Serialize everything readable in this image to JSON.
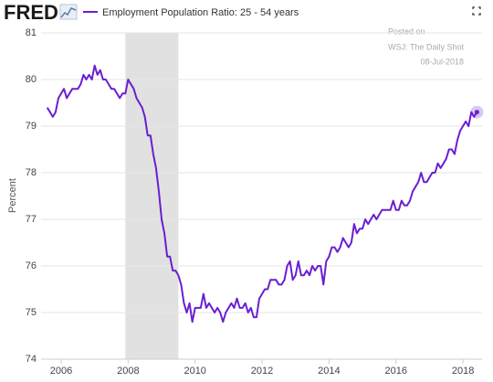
{
  "chart_data": {
    "type": "line",
    "brand": "FRED",
    "ylabel": "Percent",
    "annotations": [
      "Posted on",
      "WSJ: The Daily Shot",
      "08-Jul-2018"
    ],
    "xlim": [
      2005.4,
      2018.57
    ],
    "xticks": [
      2006,
      2008,
      2010,
      2012,
      2014,
      2016,
      2018
    ],
    "ylim": [
      74,
      81
    ],
    "yticks": [
      74,
      75,
      76,
      77,
      78,
      79,
      80,
      81
    ],
    "grid": true,
    "recession": [
      2007.917,
      2009.5
    ],
    "recession_color": "#e1e1e1",
    "x": [
      2005.583,
      2005.667,
      2005.75,
      2005.833,
      2005.917,
      2006,
      2006.083,
      2006.167,
      2006.25,
      2006.333,
      2006.417,
      2006.5,
      2006.583,
      2006.667,
      2006.75,
      2006.833,
      2006.917,
      2007,
      2007.083,
      2007.167,
      2007.25,
      2007.333,
      2007.417,
      2007.5,
      2007.583,
      2007.667,
      2007.75,
      2007.833,
      2007.917,
      2008,
      2008.083,
      2008.167,
      2008.25,
      2008.333,
      2008.417,
      2008.5,
      2008.583,
      2008.667,
      2008.75,
      2008.833,
      2008.917,
      2009,
      2009.083,
      2009.167,
      2009.25,
      2009.333,
      2009.417,
      2009.5,
      2009.583,
      2009.667,
      2009.75,
      2009.833,
      2009.917,
      2010,
      2010.083,
      2010.167,
      2010.25,
      2010.333,
      2010.417,
      2010.5,
      2010.583,
      2010.667,
      2010.75,
      2010.833,
      2010.917,
      2011,
      2011.083,
      2011.167,
      2011.25,
      2011.333,
      2011.417,
      2011.5,
      2011.583,
      2011.667,
      2011.75,
      2011.833,
      2011.917,
      2012,
      2012.083,
      2012.167,
      2012.25,
      2012.333,
      2012.417,
      2012.5,
      2012.583,
      2012.667,
      2012.75,
      2012.833,
      2012.917,
      2013,
      2013.083,
      2013.167,
      2013.25,
      2013.333,
      2013.417,
      2013.5,
      2013.583,
      2013.667,
      2013.75,
      2013.833,
      2013.917,
      2014,
      2014.083,
      2014.167,
      2014.25,
      2014.333,
      2014.417,
      2014.5,
      2014.583,
      2014.667,
      2014.75,
      2014.833,
      2014.917,
      2015,
      2015.083,
      2015.167,
      2015.25,
      2015.333,
      2015.417,
      2015.5,
      2015.583,
      2015.667,
      2015.75,
      2015.833,
      2015.917,
      2016,
      2016.083,
      2016.167,
      2016.25,
      2016.333,
      2016.417,
      2016.5,
      2016.583,
      2016.667,
      2016.75,
      2016.833,
      2016.917,
      2017,
      2017.083,
      2017.167,
      2017.25,
      2017.333,
      2017.417,
      2017.5,
      2017.583,
      2017.667,
      2017.75,
      2017.833,
      2017.917,
      2018,
      2018.083,
      2018.167,
      2018.25,
      2018.333,
      2018.417
    ],
    "series": [
      {
        "name": "Employment Population Ratio: 25 - 54 years",
        "color": "#6a1fd1",
        "values": [
          79.4,
          79.3,
          79.2,
          79.3,
          79.6,
          79.7,
          79.8,
          79.6,
          79.7,
          79.8,
          79.8,
          79.8,
          79.9,
          80.1,
          80.0,
          80.1,
          80.0,
          80.3,
          80.1,
          80.2,
          80.0,
          80.0,
          79.9,
          79.8,
          79.8,
          79.7,
          79.6,
          79.7,
          79.7,
          80.0,
          79.9,
          79.8,
          79.6,
          79.5,
          79.4,
          79.2,
          78.8,
          78.8,
          78.4,
          78.1,
          77.6,
          77.0,
          76.7,
          76.2,
          76.2,
          75.9,
          75.9,
          75.8,
          75.6,
          75.2,
          75.0,
          75.2,
          74.8,
          75.1,
          75.1,
          75.1,
          75.4,
          75.1,
          75.2,
          75.1,
          75.0,
          75.1,
          75.0,
          74.8,
          75.0,
          75.1,
          75.2,
          75.1,
          75.3,
          75.1,
          75.1,
          75.2,
          75.0,
          75.1,
          74.9,
          74.9,
          75.3,
          75.4,
          75.5,
          75.5,
          75.7,
          75.7,
          75.7,
          75.6,
          75.6,
          75.7,
          76.0,
          76.1,
          75.7,
          75.8,
          76.1,
          75.8,
          75.8,
          75.9,
          75.8,
          76.0,
          75.9,
          76.0,
          76.0,
          75.6,
          76.1,
          76.2,
          76.4,
          76.4,
          76.3,
          76.4,
          76.6,
          76.5,
          76.4,
          76.5,
          76.9,
          76.7,
          76.8,
          76.8,
          77.0,
          76.9,
          77.0,
          77.1,
          77.0,
          77.1,
          77.2,
          77.2,
          77.2,
          77.2,
          77.4,
          77.2,
          77.2,
          77.4,
          77.3,
          77.3,
          77.4,
          77.6,
          77.7,
          77.8,
          78.0,
          77.8,
          77.8,
          77.9,
          78.0,
          78.0,
          78.2,
          78.1,
          78.2,
          78.3,
          78.5,
          78.5,
          78.4,
          78.7,
          78.9,
          79.0,
          79.1,
          79.0,
          79.3,
          79.2,
          79.3
        ]
      }
    ]
  }
}
